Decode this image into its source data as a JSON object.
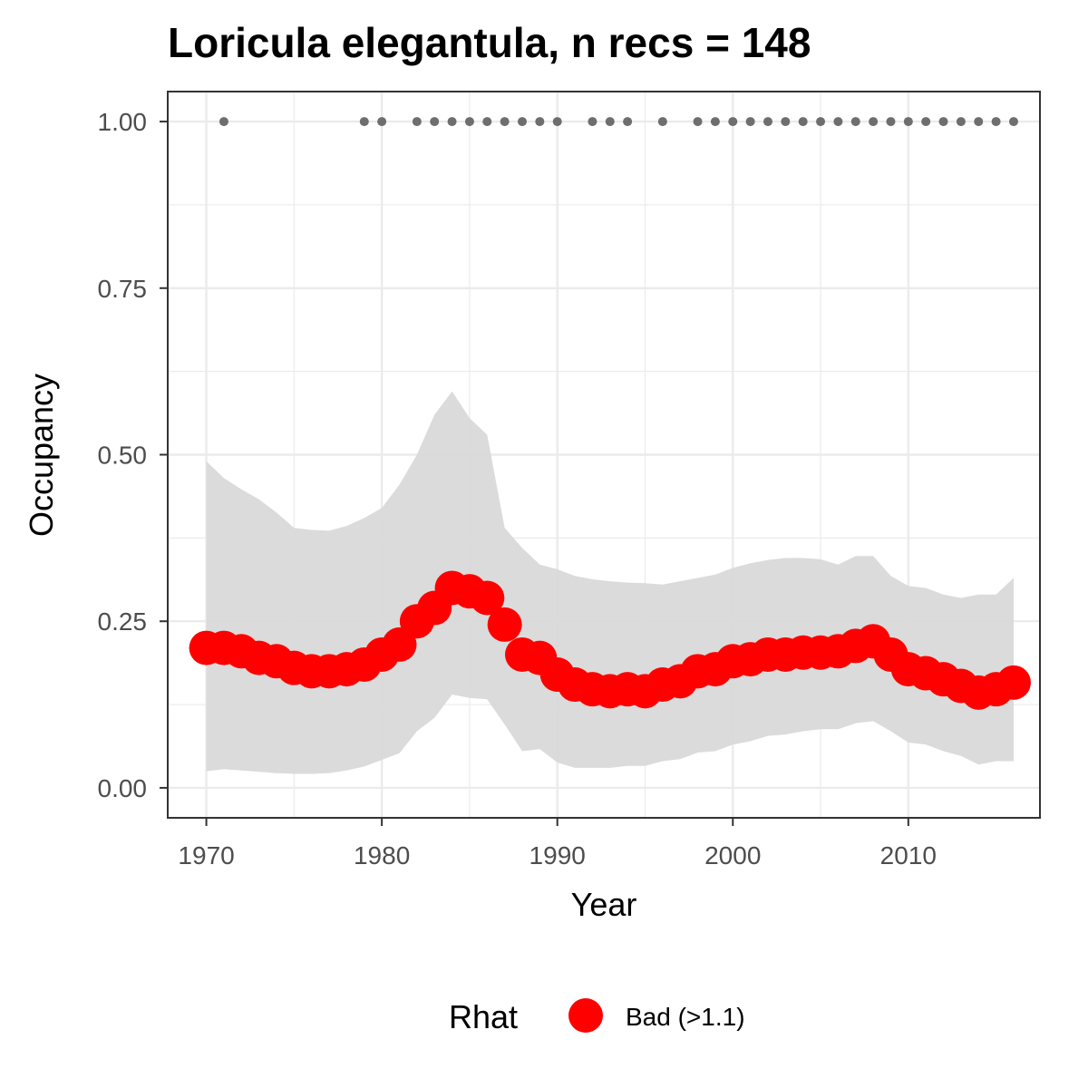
{
  "chart_data": {
    "type": "line",
    "title": "Loricula elegantula, n recs = 148",
    "xlabel": "Year",
    "ylabel": "Occupancy",
    "xlim": [
      1967.8,
      2017.5
    ],
    "ylim": [
      -0.045,
      1.045
    ],
    "x_ticks": [
      1970,
      1980,
      1990,
      2000,
      2010
    ],
    "x_tick_labels": [
      "1970",
      "1980",
      "1990",
      "2000",
      "2010"
    ],
    "y_ticks": [
      0.0,
      0.25,
      0.5,
      0.75,
      1.0
    ],
    "y_tick_labels": [
      "0.00",
      "0.25",
      "0.50",
      "0.75",
      "1.00"
    ],
    "grid": true,
    "legend_position": "bottom",
    "legend": {
      "title": "Rhat",
      "entries": [
        {
          "label": "Bad (>1.1)",
          "color": "#ff0000"
        }
      ]
    },
    "colors": {
      "mean_points": "#ff0000",
      "ribbon": "#d9d9d9",
      "record_points": "#6e6e6e",
      "grid": "#ebebeb",
      "panel_border": "#333333"
    },
    "series": [
      {
        "name": "Occupancy",
        "x": [
          1970,
          1971,
          1972,
          1973,
          1974,
          1975,
          1976,
          1977,
          1978,
          1979,
          1980,
          1981,
          1982,
          1983,
          1984,
          1985,
          1986,
          1987,
          1988,
          1989,
          1990,
          1991,
          1992,
          1993,
          1994,
          1995,
          1996,
          1997,
          1998,
          1999,
          2000,
          2001,
          2002,
          2003,
          2004,
          2005,
          2006,
          2007,
          2008,
          2009,
          2010,
          2011,
          2012,
          2013,
          2014,
          2015,
          2016
        ],
        "y": [
          0.21,
          0.21,
          0.205,
          0.195,
          0.19,
          0.18,
          0.175,
          0.175,
          0.178,
          0.185,
          0.2,
          0.215,
          0.25,
          0.27,
          0.3,
          0.295,
          0.285,
          0.245,
          0.2,
          0.195,
          0.17,
          0.155,
          0.148,
          0.145,
          0.148,
          0.145,
          0.155,
          0.16,
          0.175,
          0.178,
          0.19,
          0.193,
          0.2,
          0.2,
          0.203,
          0.203,
          0.205,
          0.213,
          0.22,
          0.2,
          0.178,
          0.172,
          0.163,
          0.153,
          0.143,
          0.148,
          0.158
        ],
        "lower": [
          0.025,
          0.028,
          0.026,
          0.024,
          0.022,
          0.021,
          0.021,
          0.022,
          0.026,
          0.032,
          0.042,
          0.052,
          0.085,
          0.105,
          0.14,
          0.135,
          0.133,
          0.095,
          0.055,
          0.058,
          0.038,
          0.03,
          0.03,
          0.03,
          0.033,
          0.033,
          0.04,
          0.043,
          0.053,
          0.055,
          0.065,
          0.07,
          0.078,
          0.08,
          0.085,
          0.088,
          0.088,
          0.097,
          0.1,
          0.085,
          0.068,
          0.065,
          0.055,
          0.048,
          0.035,
          0.04,
          0.04
        ],
        "upper": [
          0.49,
          0.465,
          0.448,
          0.433,
          0.413,
          0.39,
          0.387,
          0.386,
          0.393,
          0.405,
          0.42,
          0.455,
          0.5,
          0.56,
          0.595,
          0.555,
          0.53,
          0.39,
          0.36,
          0.335,
          0.328,
          0.318,
          0.313,
          0.31,
          0.308,
          0.307,
          0.305,
          0.31,
          0.315,
          0.32,
          0.33,
          0.337,
          0.342,
          0.345,
          0.345,
          0.343,
          0.335,
          0.348,
          0.348,
          0.318,
          0.303,
          0.3,
          0.29,
          0.285,
          0.29,
          0.29,
          0.315
        ]
      },
      {
        "name": "Records",
        "type": "scatter",
        "x": [
          1971,
          1979,
          1980,
          1982,
          1983,
          1984,
          1985,
          1986,
          1987,
          1988,
          1989,
          1990,
          1992,
          1993,
          1994,
          1996,
          1998,
          1999,
          2000,
          2001,
          2002,
          2003,
          2004,
          2005,
          2006,
          2007,
          2008,
          2009,
          2010,
          2011,
          2012,
          2013,
          2014,
          2015,
          2016
        ],
        "y": [
          1,
          1,
          1,
          1,
          1,
          1,
          1,
          1,
          1,
          1,
          1,
          1,
          1,
          1,
          1,
          1,
          1,
          1,
          1,
          1,
          1,
          1,
          1,
          1,
          1,
          1,
          1,
          1,
          1,
          1,
          1,
          1,
          1,
          1,
          1
        ]
      }
    ]
  }
}
